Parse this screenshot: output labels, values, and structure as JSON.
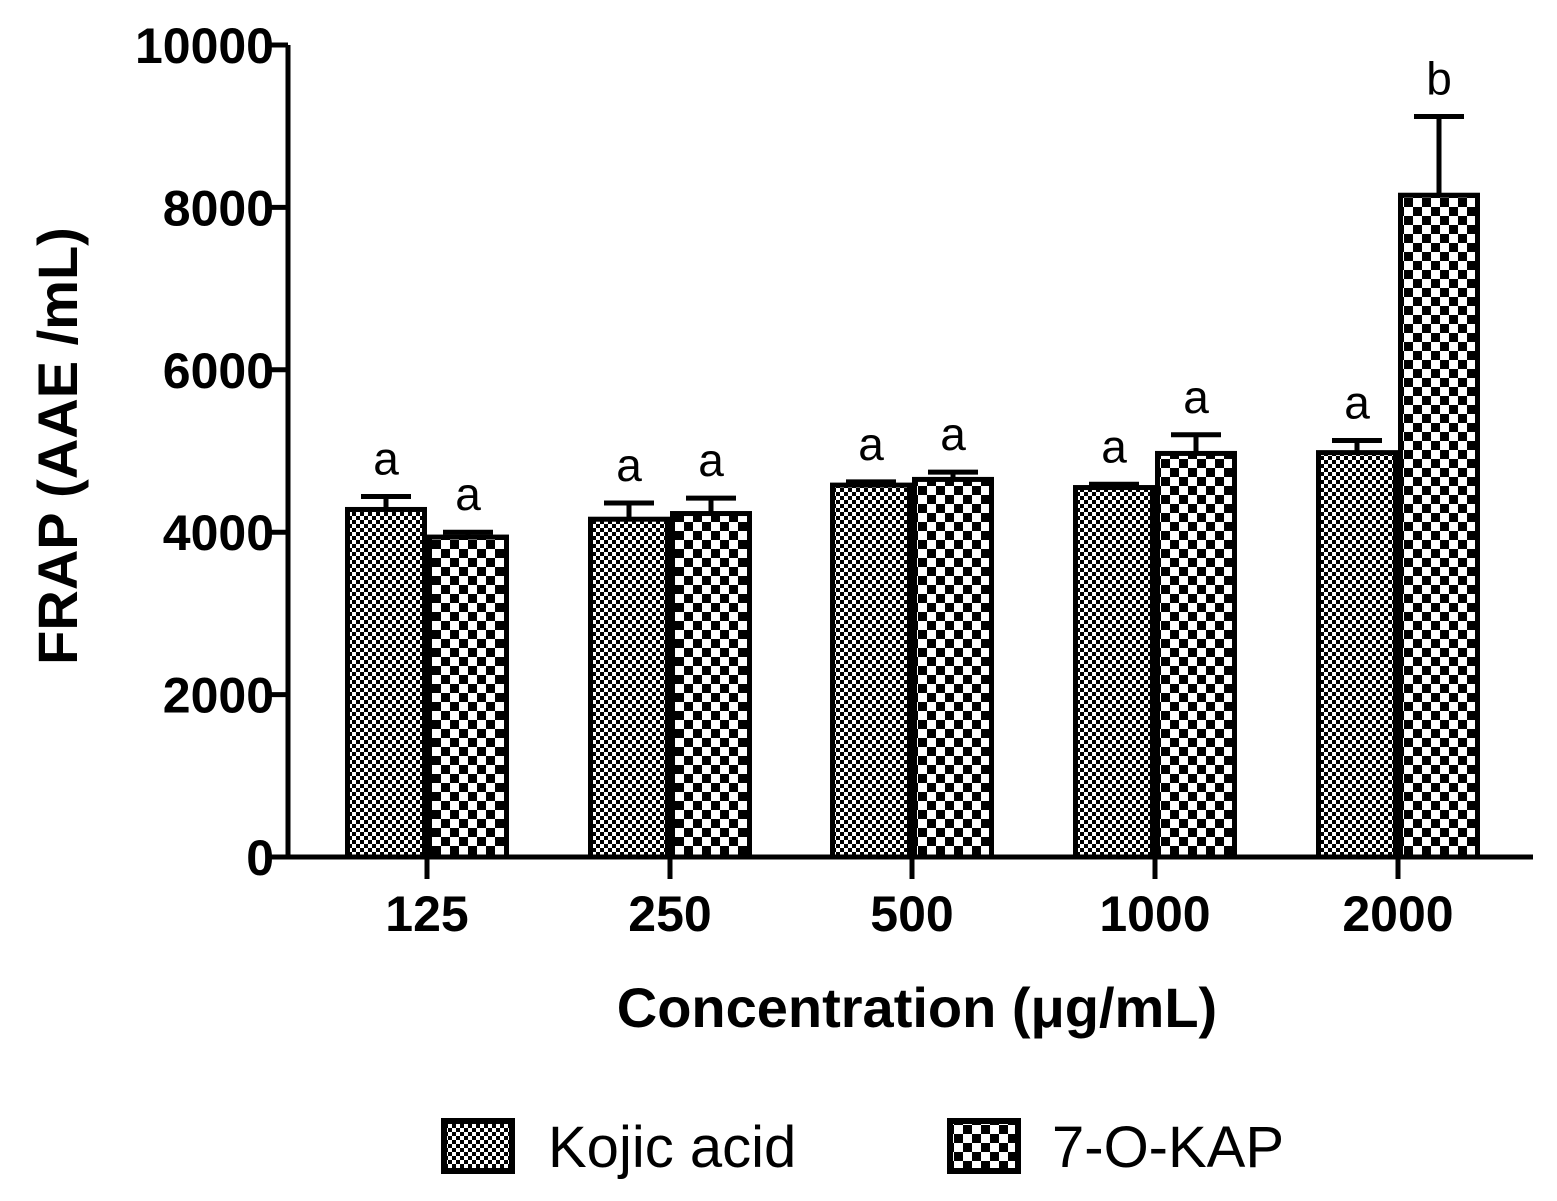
{
  "chart_data": {
    "type": "bar",
    "title": "",
    "xlabel": "Concentration (μg/mL)",
    "ylabel": "FRAP (AAE /mL)",
    "ylim": [
      0,
      10000
    ],
    "yticks": [
      0,
      2000,
      4000,
      6000,
      8000,
      10000
    ],
    "categories": [
      "125",
      "250",
      "500",
      "1000",
      "2000"
    ],
    "series": [
      {
        "name": "Kojic acid",
        "pattern": "fine-checker",
        "values": [
          4280,
          4160,
          4580,
          4550,
          4980
        ],
        "errors": [
          160,
          200,
          40,
          40,
          150
        ],
        "sig_labels": [
          "a",
          "a",
          "a",
          "a",
          "a"
        ]
      },
      {
        "name": "7-O-KAP",
        "pattern": "coarse-checker",
        "values": [
          3940,
          4230,
          4650,
          4970,
          8150
        ],
        "errors": [
          60,
          190,
          90,
          230,
          970
        ],
        "sig_labels": [
          "a",
          "a",
          "a",
          "a",
          "b"
        ]
      }
    ],
    "grid": false,
    "legend_position": "bottom"
  },
  "colors": {
    "ink": "#000000",
    "background": "#ffffff"
  }
}
